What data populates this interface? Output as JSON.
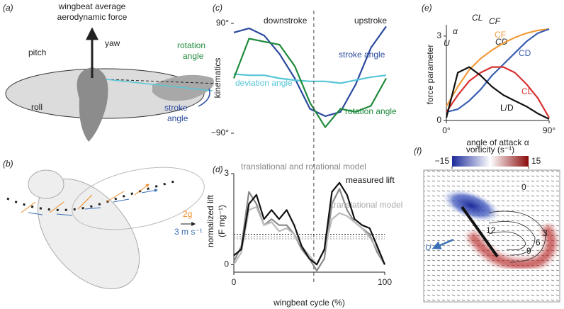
{
  "panels": {
    "a": {
      "label": "(a)",
      "title": "wingbeat average",
      "title2": "aerodynamic force",
      "yaw": "yaw",
      "pitch": "pitch",
      "roll": "roll",
      "rotation": "rotation",
      "rotation2": "angle",
      "stroke": "stroke",
      "stroke2": "angle"
    },
    "b": {
      "label": "(b)",
      "accel": "2g",
      "speed": "3 m s⁻¹"
    },
    "f": {
      "label": "(f)",
      "colorbar_title": "vorticity (s⁻¹)",
      "colorbar_ticks": [
        {
          "value": -15,
          "label": "−15"
        },
        15
      ],
      "contours": [
        "0",
        "3",
        "6",
        "9",
        "12"
      ],
      "velocity": "U"
    }
  },
  "chart_data": [
    {
      "type": "line",
      "panel": "(c)",
      "ylabel": "kinematics",
      "annotations": [
        "downstroke",
        "upstroke"
      ],
      "categories": [
        null,
        null,
        null,
        null,
        null,
        null,
        null,
        null,
        null,
        null,
        null
      ],
      "ylim": [
        -90,
        90
      ],
      "yticks": [
        {
          "value": 90,
          "label": "90°"
        },
        {
          "value": -90,
          "label": "−90°"
        }
      ],
      "series": [
        {
          "name": "stroke angle",
          "color": "#2b4a9e",
          "values": [
            75,
            82,
            70,
            40,
            0,
            -50,
            -62,
            -55,
            -10,
            50,
            85
          ]
        },
        {
          "name": "deviation angle",
          "color": "#56c6d6",
          "values": [
            7,
            5,
            5,
            0,
            -3,
            -5,
            -5,
            -8,
            -3,
            2,
            5
          ]
        },
        {
          "name": "rotation angle",
          "color": "#1f8a3c",
          "values": [
            0,
            65,
            60,
            55,
            20,
            -40,
            -80,
            -50,
            -55,
            -45,
            0
          ]
        }
      ]
    },
    {
      "type": "line",
      "panel": "(d)",
      "ylabel": [
        "normalized lift",
        "(F mg⁻¹)"
      ],
      "xlabel": "wingbeat cycle (%)",
      "x": [
        0,
        5,
        10,
        15,
        20,
        25,
        30,
        35,
        40,
        45,
        50,
        55,
        60,
        65,
        70,
        75,
        80,
        85,
        90,
        95,
        100
      ],
      "xlim": [
        0,
        100
      ],
      "xticks": [
        0,
        100
      ],
      "ylim": [
        -0.25,
        3
      ],
      "yticks": [
        0,
        3
      ],
      "divider": 53,
      "reference_lines": [
        1,
        0.92,
        0.85
      ],
      "series": [
        {
          "name": "translational and rotational model",
          "color": "#888888",
          "values": [
            0.1,
            0.6,
            2.4,
            2.0,
            1.3,
            1.5,
            1.3,
            1.3,
            1.0,
            0.5,
            0.2,
            -0.2,
            0.2,
            2.0,
            2.5,
            1.8,
            1.4,
            1.2,
            1.0,
            0.4,
            0
          ]
        },
        {
          "name": "translational model",
          "color": "#bbbbbb",
          "values": [
            0,
            0.4,
            1.8,
            1.9,
            1.3,
            1.4,
            1.1,
            1.2,
            1.0,
            0.6,
            0.3,
            0,
            0.5,
            1.5,
            1.7,
            1.6,
            1.4,
            1.2,
            0.9,
            0.5,
            0
          ]
        },
        {
          "name": "measured lift",
          "color": "#111111",
          "values": [
            0.3,
            0.5,
            2.0,
            2.3,
            1.5,
            1.8,
            1.5,
            1.8,
            1.3,
            0.6,
            0.2,
            0,
            0.5,
            2.4,
            2.7,
            2.3,
            1.5,
            1.3,
            1.2,
            0.6,
            0
          ]
        }
      ]
    },
    {
      "type": "line",
      "panel": "(e)",
      "ylabel": "force parameter",
      "xlabel": "angle of attack α",
      "inset": [
        "α",
        "U",
        "CL",
        "CF",
        "CD"
      ],
      "x": [
        0,
        10,
        20,
        30,
        40,
        50,
        60,
        70,
        80,
        90
      ],
      "xlim": [
        0,
        90
      ],
      "xticks": [
        {
          "value": 0,
          "label": "0°"
        },
        {
          "value": 90,
          "label": "90°"
        }
      ],
      "ylim": [
        0,
        3.4
      ],
      "yticks": [
        0,
        3
      ],
      "series": [
        {
          "name": "CF",
          "color": "#f39a3a",
          "values": [
            0.5,
            1.2,
            1.8,
            2.2,
            2.5,
            2.75,
            2.95,
            3.1,
            3.2,
            3.25
          ]
        },
        {
          "name": "CD",
          "color": "#3a5fb0",
          "values": [
            0.3,
            0.4,
            0.7,
            1.1,
            1.6,
            2.0,
            2.4,
            2.8,
            3.1,
            3.25
          ]
        },
        {
          "name": "CL",
          "color": "#d8302f",
          "values": [
            0.3,
            0.9,
            1.4,
            1.7,
            1.9,
            1.9,
            1.7,
            1.3,
            0.8,
            0.1
          ]
        },
        {
          "name": "L/D",
          "color": "#111111",
          "values": [
            0.1,
            1.7,
            1.9,
            1.6,
            1.2,
            0.9,
            0.7,
            0.5,
            0.25,
            0.05
          ]
        }
      ]
    }
  ]
}
